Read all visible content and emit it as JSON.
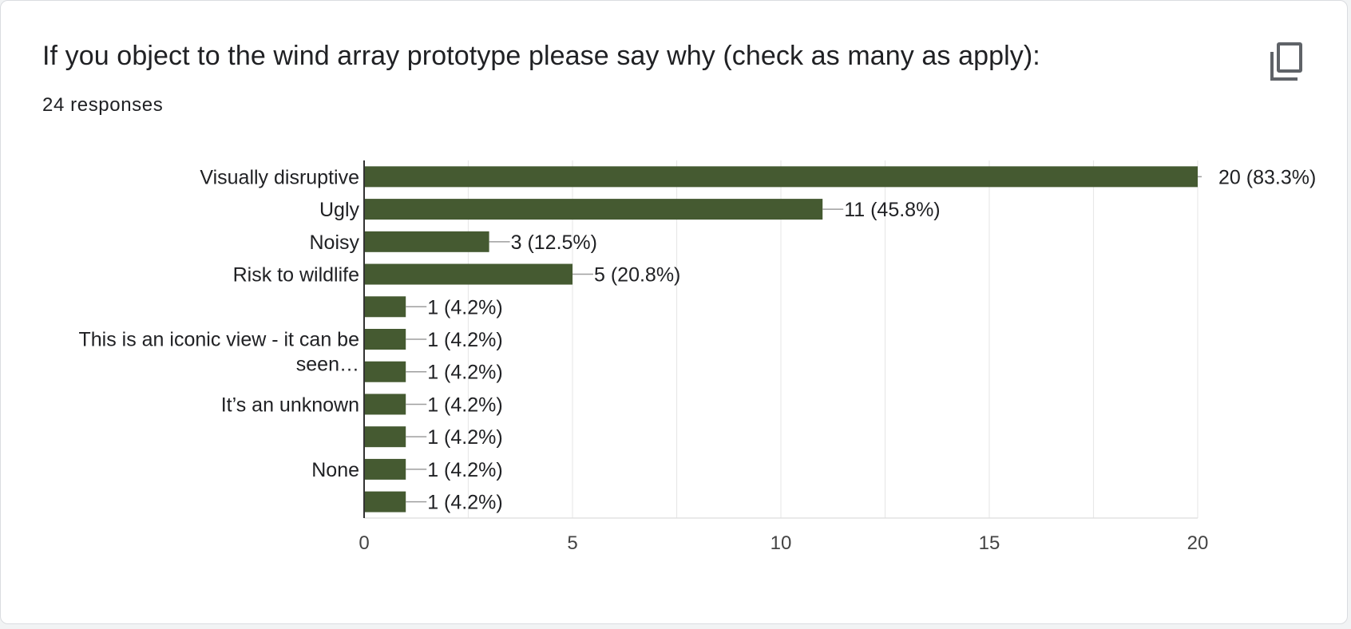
{
  "question": {
    "title": "If you object to the wind array prototype please say why (check as many as apply):",
    "responses": "24 responses"
  },
  "icons": {
    "copy": "copy-icon"
  },
  "colors": {
    "bar": "#455a31",
    "grid": "#e8e8e8",
    "axis": "#333333",
    "text": "#202124",
    "connector": "#9e9e9e"
  },
  "chart_data": {
    "type": "bar",
    "orientation": "horizontal",
    "categories": [
      "Visually disruptive",
      "Ugly",
      "Noisy",
      "Risk to wildlife",
      "",
      "This is an iconic view - it can be seen…",
      "",
      "It’s an unknown",
      "",
      "None",
      ""
    ],
    "values": [
      20,
      11,
      3,
      5,
      1,
      1,
      1,
      1,
      1,
      1,
      1
    ],
    "data_labels": [
      "20 (83.3%)",
      "11 (45.8%)",
      "3 (12.5%)",
      "5 (20.8%)",
      "1 (4.2%)",
      "1 (4.2%)",
      "1 (4.2%)",
      "1 (4.2%)",
      "1 (4.2%)",
      "1 (4.2%)",
      "1 (4.2%)"
    ],
    "xlim": [
      0,
      20
    ],
    "xticks": [
      0,
      5,
      10,
      15,
      20
    ],
    "grid": true,
    "legend": "none"
  }
}
